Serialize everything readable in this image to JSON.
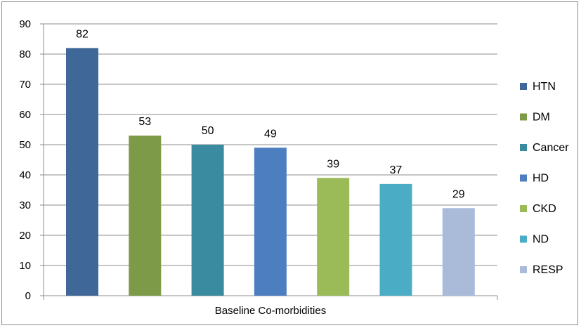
{
  "chart_data": {
    "type": "bar",
    "xlabel": "Baseline Co-morbidities",
    "ylabel": "",
    "ylim": [
      0,
      90
    ],
    "yticks": [
      0,
      10,
      20,
      30,
      40,
      50,
      60,
      70,
      80,
      90
    ],
    "grid": true,
    "legend_position": "right",
    "series": [
      {
        "name": "HTN",
        "value": 82,
        "color": "#3f6899"
      },
      {
        "name": "DM",
        "value": 53,
        "color": "#7c9a48"
      },
      {
        "name": "Cancer",
        "value": 50,
        "color": "#3a8ba0"
      },
      {
        "name": "HD",
        "value": 49,
        "color": "#4d7fc0"
      },
      {
        "name": "CKD",
        "value": 39,
        "color": "#9bbb59"
      },
      {
        "name": "ND",
        "value": 37,
        "color": "#4bacc6"
      },
      {
        "name": "RESP",
        "value": 29,
        "color": "#a9bbd9"
      }
    ]
  }
}
